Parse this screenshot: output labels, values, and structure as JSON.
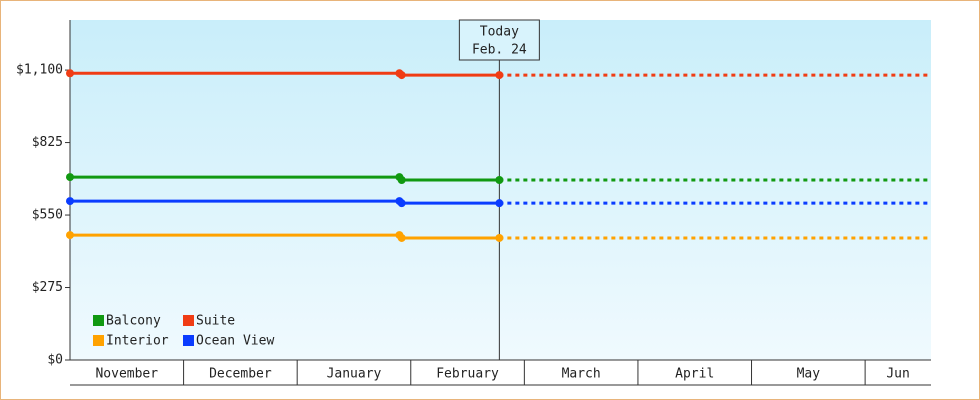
{
  "chart_data": {
    "type": "line",
    "ylim": [
      0,
      1290
    ],
    "yticks": [
      {
        "value": 0,
        "label": "$0"
      },
      {
        "value": 275,
        "label": "$275"
      },
      {
        "value": 550,
        "label": "$550"
      },
      {
        "value": 825,
        "label": "$825"
      },
      {
        "value": 1100,
        "label": "$1,100"
      }
    ],
    "categories": [
      "November",
      "December",
      "January",
      "February",
      "March",
      "April",
      "May",
      "Jun"
    ],
    "xlim": [
      0,
      7.58
    ],
    "x": [
      0,
      2.9,
      2.92,
      3.78
    ],
    "series": [
      {
        "name": "Balcony",
        "color": "#119911",
        "values": [
          694,
          694,
          683,
          683
        ]
      },
      {
        "name": "Suite",
        "color": "#f03c14",
        "values": [
          1088,
          1088,
          1081,
          1081
        ]
      },
      {
        "name": "Interior",
        "color": "#ffa200",
        "values": [
          474,
          474,
          463,
          463
        ]
      },
      {
        "name": "Ocean View",
        "color": "#0a3cff",
        "values": [
          603,
          603,
          595,
          595
        ]
      }
    ],
    "annotation": {
      "label": "Today",
      "date": "Feb. 24",
      "x": 3.78
    },
    "legend": "bottom-left"
  }
}
